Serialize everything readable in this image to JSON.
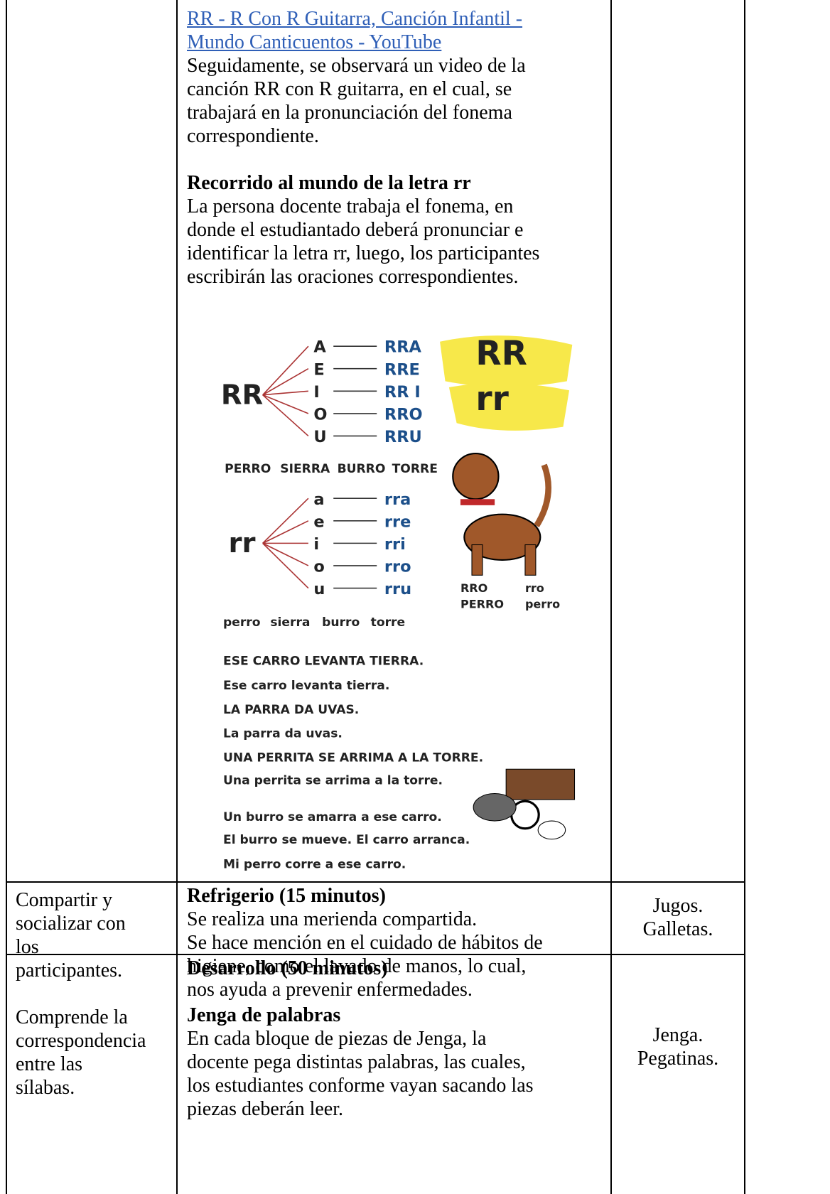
{
  "table": {
    "rows": [
      {
        "content": {
          "link": [
            "RR - R Con R Guitarra, Canción Infantil -",
            "Mundo Canticuentos - YouTube"
          ],
          "paragraph": [
            "Seguidamente, se observará un video de la",
            "canción RR con R guitarra, en el cual, se",
            "trabajará en la pronunciación del fonema",
            "correspondiente."
          ],
          "heading": "Recorrido al mundo de la letra rr",
          "text": [
            "La persona docente trabaja el fonema, en",
            "donde el estudiantado deberá pronunciar e",
            "identificar la letra rr, luego, los participantes",
            "escribirán las oraciones correspondientes."
          ],
          "image": {
            "upper": {
              "letter": "RR",
              "vowels": [
                "A",
                "E",
                "I",
                "O",
                "U"
              ],
              "syllables": [
                "RRA",
                "RRE",
                "RR I",
                "RRO",
                "RRU"
              ],
              "words": [
                "PERRO",
                "SIERRA",
                "BURRO",
                "TORRE"
              ]
            },
            "lower": {
              "letter": "rr",
              "vowels": [
                "a",
                "e",
                "i",
                "o",
                "u"
              ],
              "syllables": [
                "rra",
                "rre",
                "rri",
                "rro",
                "rru"
              ],
              "words": [
                "perro",
                "sierra",
                "burro",
                "torre"
              ]
            },
            "badges": [
              "RR",
              "rr"
            ],
            "dog_labels": [
              "RRO",
              "rro",
              "PERRO",
              "perro"
            ],
            "sentences": [
              "ESE CARRO LEVANTA TIERRA.",
              "Ese carro levanta tierra.",
              "LA PARRA DA UVAS.",
              "La parra da uvas.",
              "UNA PERRITA SE ARRIMA A LA TORRE.",
              "Una perrita se arrima a la torre.",
              "Un burro se amarra a ese carro.",
              "El burro se mueve. El carro arranca.",
              "Mi perro corre a ese carro."
            ]
          }
        }
      },
      {
        "objective": [
          "Compartir y",
          "socializar con",
          "los",
          "participantes."
        ],
        "heading": "Refrigerio (15 minutos)",
        "text": [
          "Se realiza una merienda compartida.",
          "Se hace mención en el cuidado de hábitos de",
          "higiene, como el lavado de manos, lo cual,",
          "nos ayuda a prevenir enfermedades."
        ],
        "resources": [
          "Jugos.",
          "Galletas."
        ]
      },
      {
        "objective": [
          "Comprende la",
          "correspondencia",
          "entre las",
          "sílabas."
        ],
        "heading": "Desarrollo (50 minutos)",
        "subheading": "Jenga de palabras",
        "text": [
          "En cada bloque de piezas de Jenga, la",
          "docente pega distintas palabras, las cuales,",
          "los estudiantes conforme vayan sacando las",
          "piezas deberán leer."
        ],
        "resources": [
          "Jenga.",
          "Pegatinas."
        ]
      }
    ]
  }
}
